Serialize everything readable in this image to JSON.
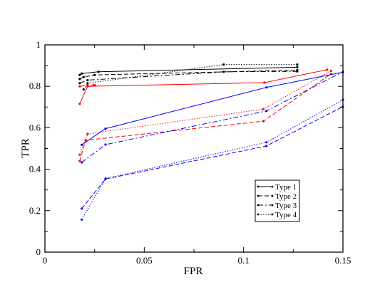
{
  "chart_data": {
    "type": "line",
    "title": "",
    "xlabel": "FPR",
    "ylabel": "TPR",
    "xlim": [
      0,
      0.15
    ],
    "ylim": [
      0,
      1
    ],
    "xticks": [
      0,
      0.05,
      0.1,
      0.15
    ],
    "xtick_labels": [
      "0",
      "0.05",
      "0.1",
      "0.15"
    ],
    "yticks": [
      0,
      0.2,
      0.4,
      0.6,
      0.8,
      1
    ],
    "ytick_labels": [
      "0",
      "0.2",
      "0.4",
      "0.6",
      "0.8",
      "1"
    ],
    "grid": false,
    "legend_position": "lower-right",
    "legend": [
      {
        "label": "Type 1",
        "dash": "solid"
      },
      {
        "label": "Type 2",
        "dash": "dashed"
      },
      {
        "label": "Type 3",
        "dash": "dashdot"
      },
      {
        "label": "Type 4",
        "dash": "dotted"
      }
    ],
    "series": [
      {
        "type": "Type 1",
        "color": "#000000",
        "dash": "solid",
        "x": [
          0.0175,
          0.0185,
          0.027,
          0.127
        ],
        "y": [
          0.855,
          0.862,
          0.87,
          0.892
        ]
      },
      {
        "type": "Type 2",
        "color": "#000000",
        "dash": "dashed",
        "x": [
          0.0175,
          0.0195,
          0.025,
          0.127
        ],
        "y": [
          0.835,
          0.845,
          0.855,
          0.878
        ]
      },
      {
        "type": "Type 3",
        "color": "#000000",
        "dash": "dashdot",
        "x": [
          0.0175,
          0.0215,
          0.09,
          0.127
        ],
        "y": [
          0.815,
          0.83,
          0.87,
          0.872
        ]
      },
      {
        "type": "Type 4",
        "color": "#000000",
        "dash": "dotted",
        "x": [
          0.0195,
          0.0215,
          0.09,
          0.127
        ],
        "y": [
          0.785,
          0.815,
          0.905,
          0.905
        ]
      },
      {
        "type": "Type 1",
        "color": "#ff0000",
        "dash": "solid",
        "x": [
          0.0175,
          0.0215,
          0.1105,
          0.142
        ],
        "y": [
          0.715,
          0.8,
          0.818,
          0.88
        ]
      },
      {
        "type": "Type 2",
        "color": "#ff0000",
        "dash": "dashed",
        "x": [
          0.0175,
          0.0205,
          0.11,
          0.144
        ],
        "y": [
          0.44,
          0.54,
          0.632,
          0.86
        ]
      },
      {
        "type": "Type 3",
        "color": "#ff0000",
        "dash": "dashdot",
        "x": [
          0.0175,
          0.0215,
          0.0245,
          0.0252
        ],
        "y": [
          0.8,
          0.805,
          0.805,
          0.805
        ]
      },
      {
        "type": "Type 4",
        "color": "#ff0000",
        "dash": "dotted",
        "x": [
          0.0175,
          0.0215,
          0.11,
          0.144
        ],
        "y": [
          0.47,
          0.57,
          0.69,
          0.875
        ]
      },
      {
        "type": "Type 1",
        "color": "#0000ff",
        "dash": "solid",
        "x": [
          0.0185,
          0.0305,
          0.1115,
          0.15
        ],
        "y": [
          0.518,
          0.596,
          0.795,
          0.868
        ]
      },
      {
        "type": "Type 2",
        "color": "#0000ff",
        "dash": "dashed",
        "x": [
          0.0185,
          0.0305,
          0.1115,
          0.15
        ],
        "y": [
          0.21,
          0.353,
          0.512,
          0.702
        ]
      },
      {
        "type": "Type 3",
        "color": "#0000ff",
        "dash": "dashdot",
        "x": [
          0.0185,
          0.0305,
          0.1115,
          0.15
        ],
        "y": [
          0.433,
          0.519,
          0.681,
          0.87
        ]
      },
      {
        "type": "Type 4",
        "color": "#0000ff",
        "dash": "dotted",
        "x": [
          0.0185,
          0.0305,
          0.1115,
          0.15
        ],
        "y": [
          0.157,
          0.355,
          0.53,
          0.735
        ]
      }
    ]
  }
}
